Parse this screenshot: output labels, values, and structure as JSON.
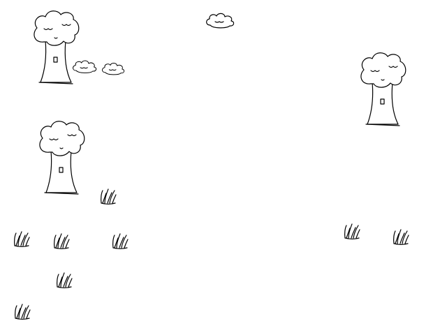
{
  "scene": {
    "background_color": "#ffffff",
    "line_color": "#000000",
    "objects": [
      {
        "kind": "tree",
        "icon": "tree-icon"
      },
      {
        "kind": "tree",
        "icon": "tree-icon"
      },
      {
        "kind": "tree",
        "icon": "tree-icon"
      },
      {
        "kind": "cloud",
        "icon": "cloud-icon"
      },
      {
        "kind": "cloud",
        "icon": "cloud-icon"
      },
      {
        "kind": "cloud",
        "icon": "cloud-icon"
      },
      {
        "kind": "grass",
        "icon": "grass-tuft-icon"
      },
      {
        "kind": "grass",
        "icon": "grass-tuft-icon"
      },
      {
        "kind": "grass",
        "icon": "grass-tuft-icon"
      },
      {
        "kind": "grass",
        "icon": "grass-tuft-icon"
      },
      {
        "kind": "grass",
        "icon": "grass-tuft-icon"
      },
      {
        "kind": "grass",
        "icon": "grass-tuft-icon"
      },
      {
        "kind": "grass",
        "icon": "grass-tuft-icon"
      },
      {
        "kind": "grass",
        "icon": "grass-tuft-icon"
      },
      {
        "kind": "grass",
        "icon": "grass-tuft-icon"
      }
    ]
  }
}
